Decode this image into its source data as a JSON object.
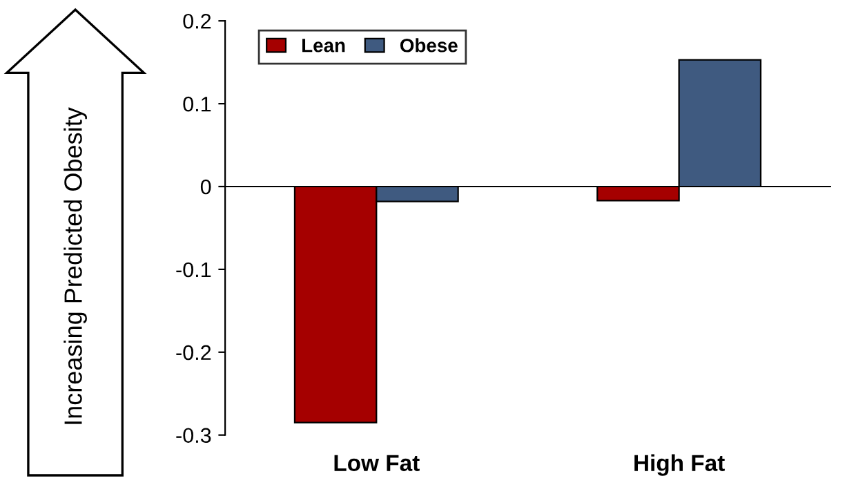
{
  "chart_data": {
    "type": "bar",
    "ylabel": "Increasing Predicted Obesity",
    "categories": [
      "Low Fat",
      "High Fat"
    ],
    "series": [
      {
        "name": "Lean",
        "color": "#a50000",
        "values": [
          -0.285,
          -0.017
        ]
      },
      {
        "name": "Obese",
        "color": "#3f5a80",
        "values": [
          -0.018,
          0.153
        ]
      }
    ],
    "ylim": [
      -0.3,
      0.2
    ],
    "yticks": [
      -0.3,
      -0.2,
      -0.1,
      0,
      0.1,
      0.2
    ],
    "legend": "top left"
  }
}
